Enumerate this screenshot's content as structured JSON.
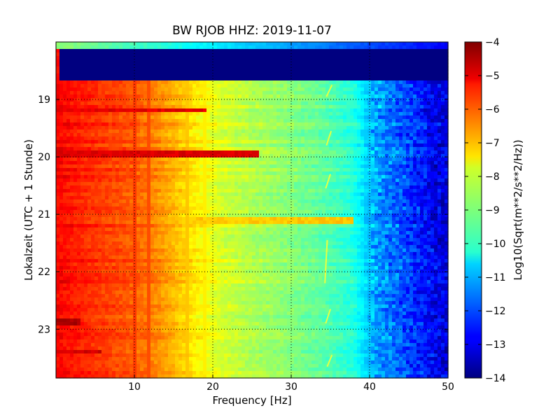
{
  "chart_data": {
    "type": "heatmap",
    "title": "BW RJOB HHZ: 2019-11-07",
    "xlabel": "Frequency [Hz]",
    "ylabel": "Lokalzeit (UTC + 1 Stunde)",
    "xlim": [
      0,
      50
    ],
    "ylim": [
      18.0,
      23.85
    ],
    "y_inverted": true,
    "x_ticks": [
      10,
      20,
      30,
      40,
      50
    ],
    "y_ticks": [
      19,
      20,
      21,
      22,
      23
    ],
    "x_tick_labels": [
      "10",
      "20",
      "30",
      "40",
      "50"
    ],
    "y_tick_labels": [
      "19",
      "20",
      "21",
      "22",
      "23"
    ],
    "grid": true,
    "colormap": "jet",
    "colorbar": {
      "label": "Log10(Sqrt(m**2/s**2/Hz))",
      "range": [
        -14,
        -4
      ],
      "ticks": [
        -4,
        -5,
        -6,
        -7,
        -8,
        -9,
        -10,
        -11,
        -12,
        -13,
        -14
      ],
      "tick_labels": [
        "−4",
        "−5",
        "−6",
        "−7",
        "−8",
        "−9",
        "−10",
        "−11",
        "−12",
        "−13",
        "−14"
      ]
    },
    "data_gap": {
      "from_hour": 18.1,
      "to_hour": 18.7,
      "value": -14
    },
    "profile_by_frequency": [
      {
        "frequency_hz": 0,
        "value": -5.2
      },
      {
        "frequency_hz": 5,
        "value": -5.7
      },
      {
        "frequency_hz": 9,
        "value": -6.0
      },
      {
        "frequency_hz": 12,
        "value": -6.4
      },
      {
        "frequency_hz": 15,
        "value": -7.0
      },
      {
        "frequency_hz": 18,
        "value": -7.6
      },
      {
        "frequency_hz": 21,
        "value": -8.1
      },
      {
        "frequency_hz": 25,
        "value": -8.5
      },
      {
        "frequency_hz": 30,
        "value": -8.9
      },
      {
        "frequency_hz": 34,
        "value": -9.3
      },
      {
        "frequency_hz": 38,
        "value": -9.9
      },
      {
        "frequency_hz": 40,
        "value": -10.8
      },
      {
        "frequency_hz": 42,
        "value": -11.4
      },
      {
        "frequency_hz": 45,
        "value": -12.1
      },
      {
        "frequency_hz": 48,
        "value": -12.8
      },
      {
        "frequency_hz": 50,
        "value": -13.1
      }
    ],
    "spectral_lines": [
      {
        "frequency_hz": 10.2,
        "value": -5.8
      },
      {
        "frequency_hz": 11.7,
        "value": -6.0
      },
      {
        "frequency_hz": 16.6,
        "value": -7.2
      },
      {
        "frequency_hz": 19.0,
        "value": -7.6
      }
    ],
    "time_events": [
      {
        "hour": 19.17,
        "value": -5.0,
        "max_frequency_hz": 19
      },
      {
        "hour": 19.95,
        "value": -4.9,
        "max_frequency_hz": 26
      },
      {
        "hour": 20.1,
        "value": -6.5,
        "max_frequency_hz": 12
      },
      {
        "hour": 21.1,
        "value": -7.2,
        "max_frequency_hz": 38
      },
      {
        "hour": 22.88,
        "value": -4.4,
        "max_frequency_hz": 3
      },
      {
        "hour": 23.4,
        "value": -4.8,
        "max_frequency_hz": 6
      }
    ],
    "drifting_line": [
      {
        "hour": 18.75,
        "frequency_hz": 35.2
      },
      {
        "hour": 18.95,
        "frequency_hz": 34.5
      },
      {
        "hour": 19.55,
        "frequency_hz": 35.1
      },
      {
        "hour": 19.8,
        "frequency_hz": 34.5
      },
      {
        "hour": 20.3,
        "frequency_hz": 35.0
      },
      {
        "hour": 20.55,
        "frequency_hz": 34.4
      },
      {
        "hour": 21.45,
        "frequency_hz": 34.6
      },
      {
        "hour": 22.2,
        "frequency_hz": 34.3
      },
      {
        "hour": 22.65,
        "frequency_hz": 35.0
      },
      {
        "hour": 22.9,
        "frequency_hz": 34.4
      },
      {
        "hour": 23.45,
        "frequency_hz": 35.2
      },
      {
        "hour": 23.65,
        "frequency_hz": 34.6
      }
    ]
  }
}
